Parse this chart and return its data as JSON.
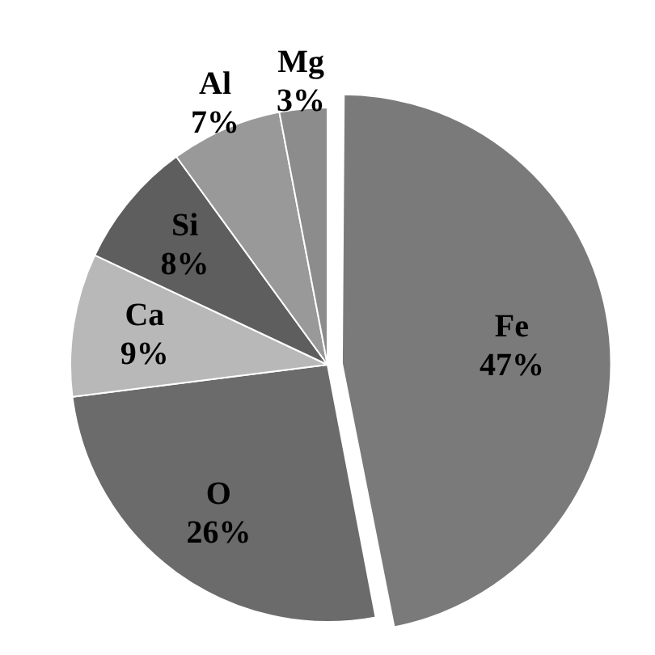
{
  "chart_data": {
    "type": "pie",
    "categories": [
      "Fe",
      "O",
      "Ca",
      "Si",
      "Al",
      "Mg"
    ],
    "values": [
      47,
      26,
      9,
      8,
      7,
      3
    ],
    "value_labels": [
      "47%",
      "26%",
      "9%",
      "8%",
      "7%",
      "3%"
    ],
    "colors": [
      "#7a7a7a",
      "#6b6b6b",
      "#b8b8b8",
      "#5e5e5e",
      "#999999",
      "#8c8c8c"
    ],
    "legend": false
  }
}
